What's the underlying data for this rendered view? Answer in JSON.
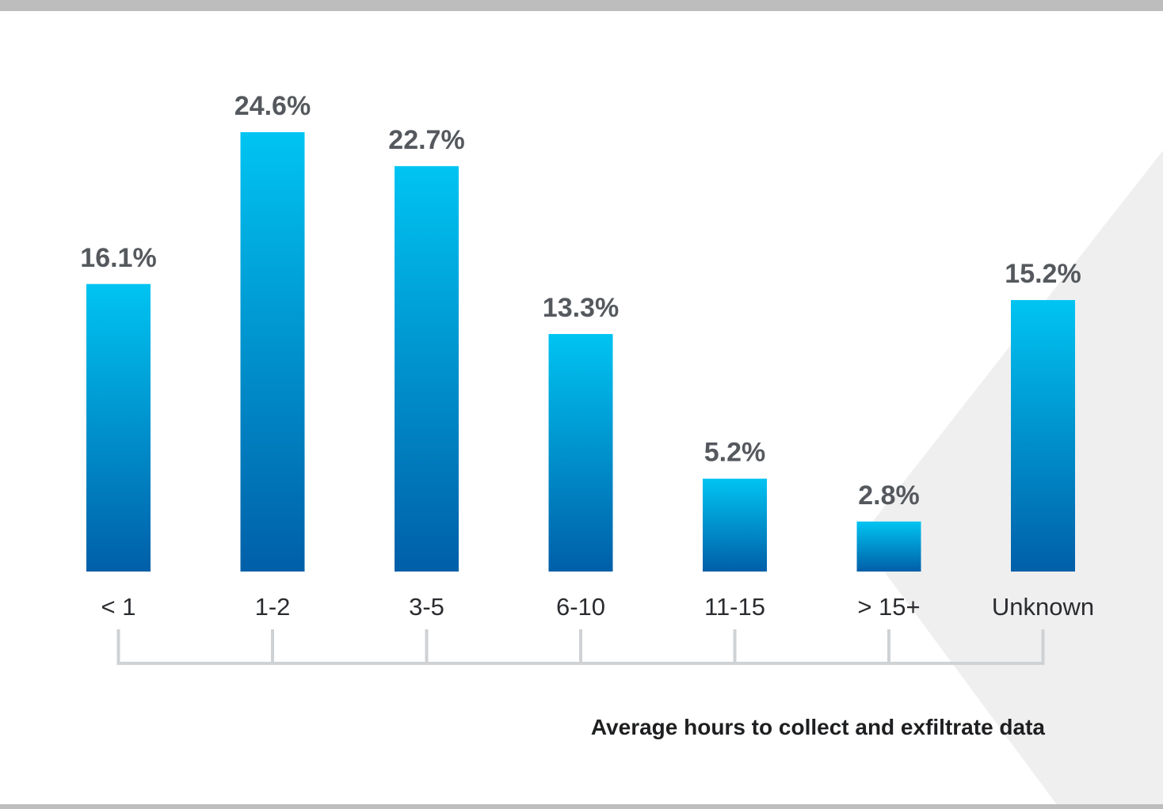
{
  "chart_data": {
    "type": "bar",
    "categories": [
      "< 1",
      "1-2",
      "3-5",
      "6-10",
      "11-15",
      "> 15+",
      "Unknown"
    ],
    "values": [
      16.1,
      24.6,
      22.7,
      13.3,
      5.2,
      2.8,
      15.2
    ],
    "value_labels": [
      "16.1%",
      "24.6%",
      "22.7%",
      "13.3%",
      "5.2%",
      "2.8%",
      "15.2%"
    ],
    "xlabel": "Average hours to collect and exfiltrate data",
    "ylabel": "",
    "ylim": [
      0,
      24.6
    ],
    "grid": false,
    "legend": "none"
  },
  "colors": {
    "bar_top": "#00c4f2",
    "bar_bottom": "#005fa8",
    "value_text": "#55595e",
    "tick_text": "#2a2c2f",
    "bracket": "#cfd2d5",
    "background_shape": "#efeff0",
    "border": "#bdbdbd"
  }
}
